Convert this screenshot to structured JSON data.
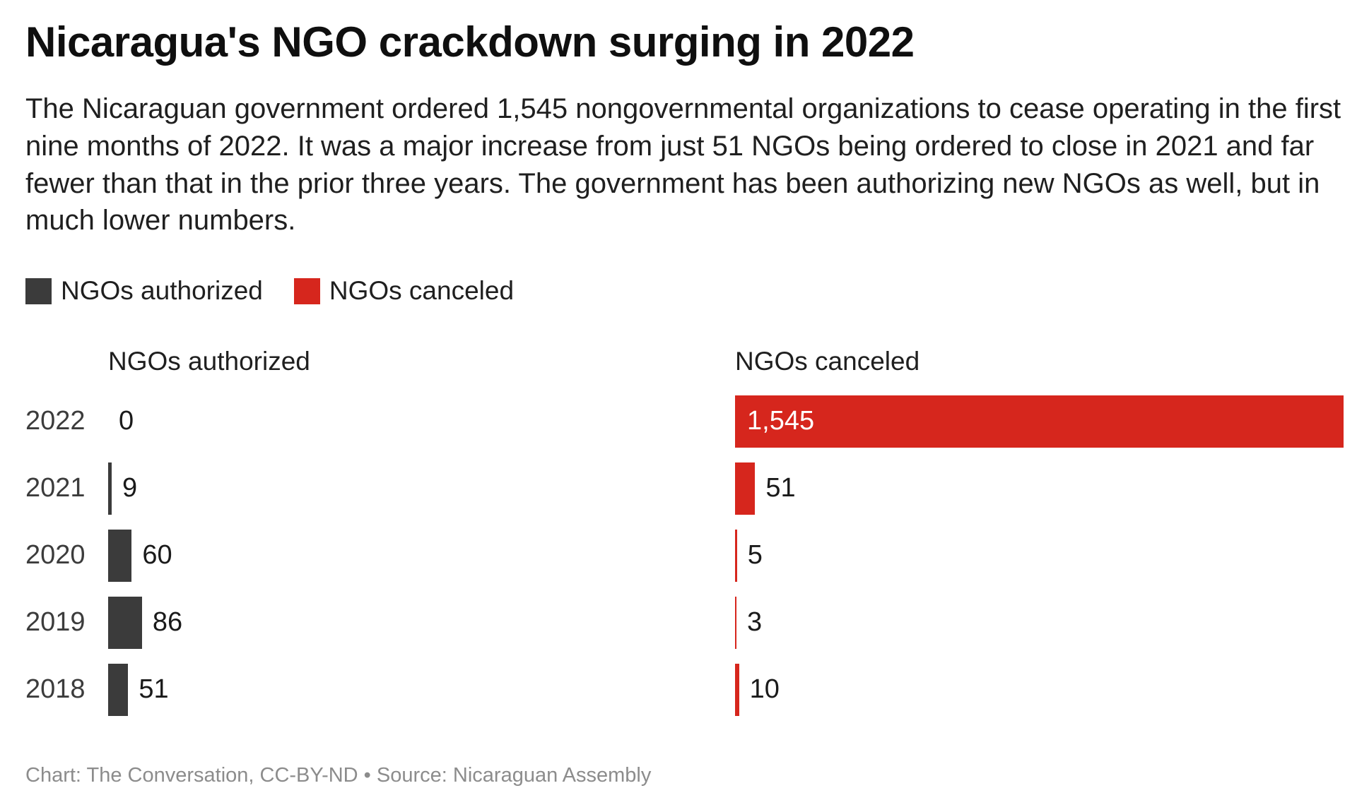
{
  "title": "Nicaragua's NGO crackdown surging in 2022",
  "subtitle": "The Nicaraguan government ordered 1,545 nongovernmental organizations to cease operating in the first nine months of 2022. It was a major increase from just 51 NGOs being ordered to close in 2021 and far fewer than that in the prior three years. The government has been authorizing new NGOs as well, but in much lower numbers.",
  "legend": [
    {
      "label": "NGOs authorized",
      "color": "#3b3b3b"
    },
    {
      "label": "NGOs canceled",
      "color": "#d6261d"
    }
  ],
  "footer": "Chart: The Conversation, CC-BY-ND • Source: Nicaraguan Assembly",
  "chart_data": {
    "type": "bar",
    "orientation": "horizontal",
    "title": "Nicaragua's NGO crackdown surging in 2022",
    "categories": [
      "2022",
      "2021",
      "2020",
      "2019",
      "2018"
    ],
    "series": [
      {
        "name": "NGOs authorized",
        "color": "#3b3b3b",
        "values": [
          0,
          9,
          60,
          86,
          51
        ],
        "value_labels": [
          "0",
          "9",
          "60",
          "86",
          "51"
        ]
      },
      {
        "name": "NGOs canceled",
        "color": "#d6261d",
        "values": [
          1545,
          51,
          5,
          3,
          10
        ],
        "value_labels": [
          "1,545",
          "51",
          "5",
          "3",
          "10"
        ]
      }
    ],
    "panel_headers": [
      "NGOs authorized",
      "NGOs canceled"
    ],
    "scale_max": 1545,
    "xlim": [
      0,
      1545
    ],
    "grid": false,
    "legend_position": "top"
  }
}
